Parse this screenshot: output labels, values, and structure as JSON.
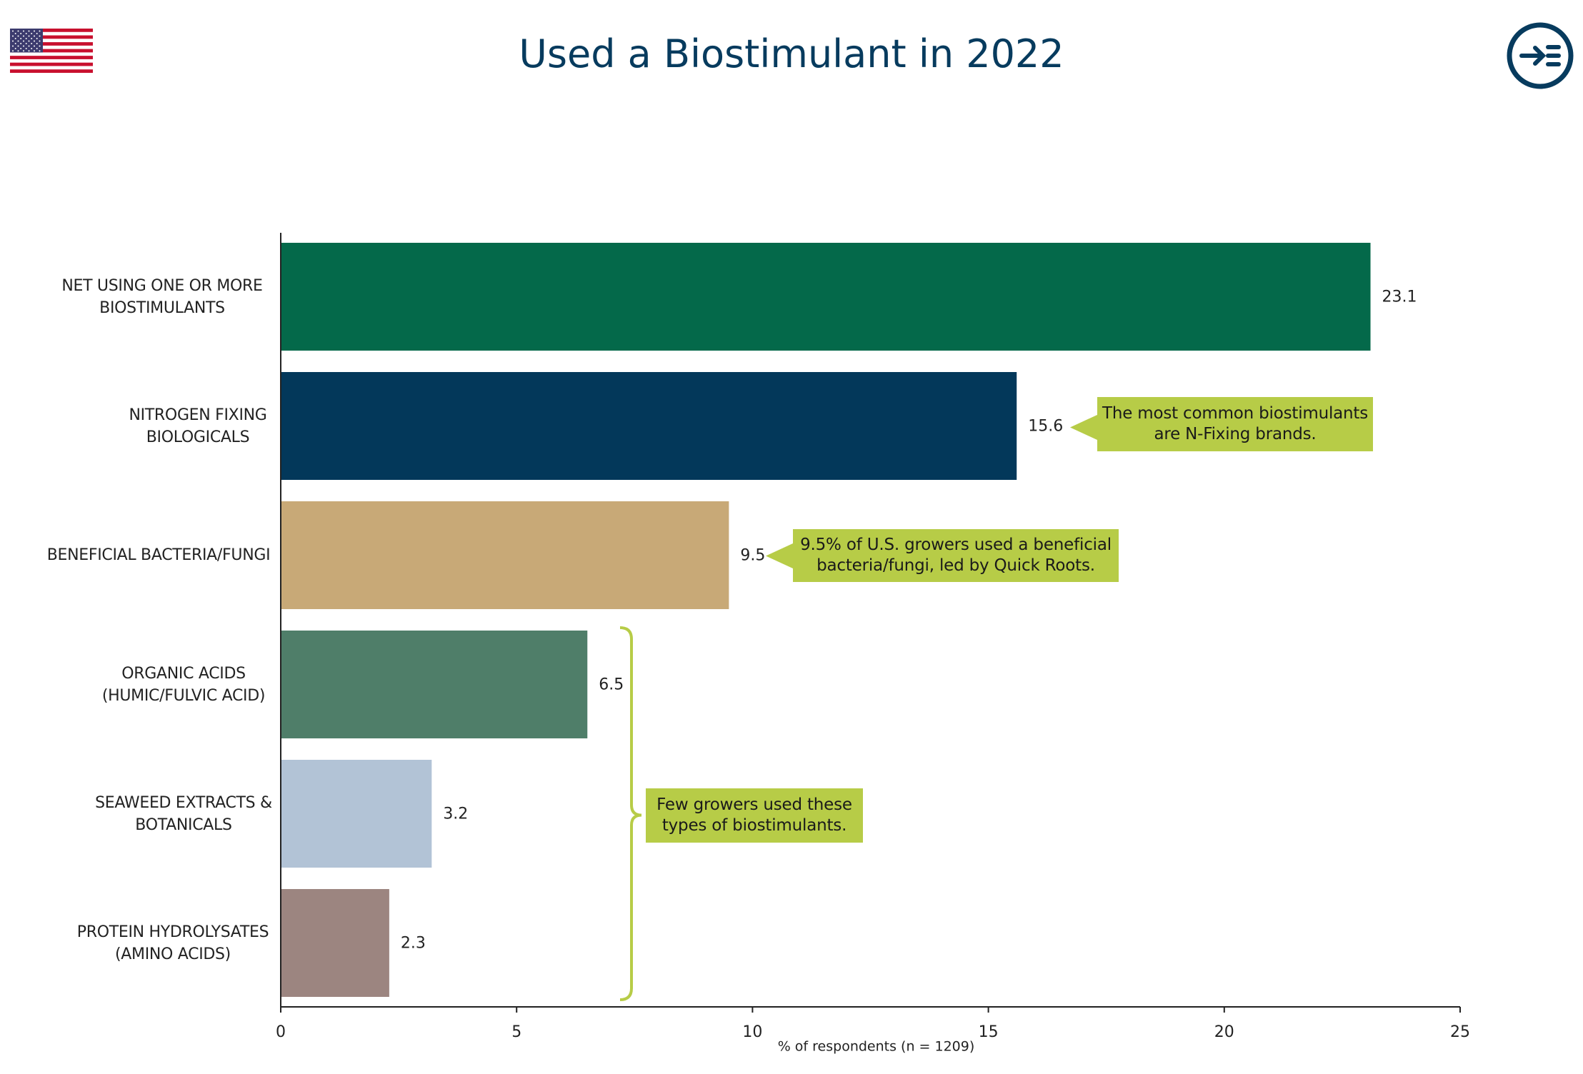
{
  "header": {
    "title": "Used a Biostimulant in 2022",
    "flag_icon": "us-flag-icon",
    "nav_icon": "arrow-right-list-icon"
  },
  "chart_data": {
    "type": "bar",
    "orientation": "horizontal",
    "categories": [
      "NET USING ONE OR MORE\nBIOSTIMULANTS",
      "NITROGEN FIXING\nBIOLOGICALS",
      "BENEFICIAL BACTERIA/FUNGI",
      "ORGANIC ACIDS\n(HUMIC/FULVIC ACID)",
      "SEAWEED EXTRACTS &\nBOTANICALS",
      "PROTEIN HYDROLYSATES\n(AMINO ACIDS)"
    ],
    "values": [
      23.1,
      15.6,
      9.5,
      6.5,
      3.2,
      2.3
    ],
    "data_labels": [
      "23.1",
      "15.6",
      "9.5",
      "6.5",
      "3.2",
      "2.3"
    ],
    "colors": [
      "#04694a",
      "#03385a",
      "#c8a977",
      "#4f7e69",
      "#b2c3d6",
      "#9c8580"
    ],
    "xlabel": "% of respondents (n = 1209)",
    "xlim": [
      0,
      25
    ],
    "xticks": [
      "0",
      "5",
      "10",
      "15",
      "20",
      "25"
    ],
    "grid": false,
    "legend": "none",
    "callouts": [
      {
        "text": "The most common biostimulants\nare N-Fixing brands.",
        "target_index": 1
      },
      {
        "text": "9.5% of U.S. growers used a beneficial\nbacteria/fungi, led by Quick Roots.",
        "target_index": 2
      },
      {
        "text": "Few growers used these\ntypes of biostimulants.",
        "target_range": [
          3,
          5
        ]
      }
    ]
  },
  "colors": {
    "title": "#073b5e",
    "callout": "#b7cc47",
    "axis": "#222222"
  }
}
